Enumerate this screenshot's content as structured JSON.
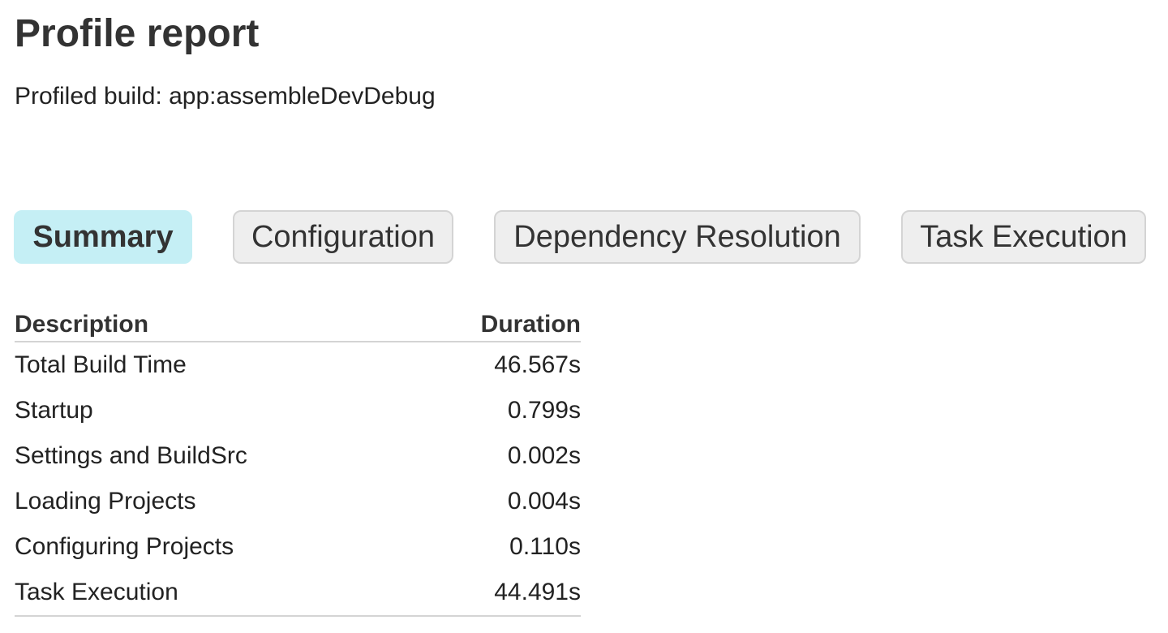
{
  "title": "Profile report",
  "subtitle": "Profiled build: app:assembleDevDebug",
  "tabs": [
    {
      "label": "Summary",
      "active": true
    },
    {
      "label": "Configuration"
    },
    {
      "label": "Dependency Resolution"
    },
    {
      "label": "Task Execution"
    }
  ],
  "colors": {
    "active_tab": "#c5eff5",
    "inactive_tab": "#eeeeee"
  },
  "table": {
    "headers": [
      "Description",
      "Duration"
    ],
    "rows": [
      [
        "Total Build Time",
        "46.567s"
      ],
      [
        "Startup",
        "0.799s"
      ],
      [
        "Settings and BuildSrc",
        "0.002s"
      ],
      [
        "Loading Projects",
        "0.004s"
      ],
      [
        "Configuring Projects",
        "0.110s"
      ],
      [
        "Task Execution",
        "44.491s"
      ]
    ]
  }
}
